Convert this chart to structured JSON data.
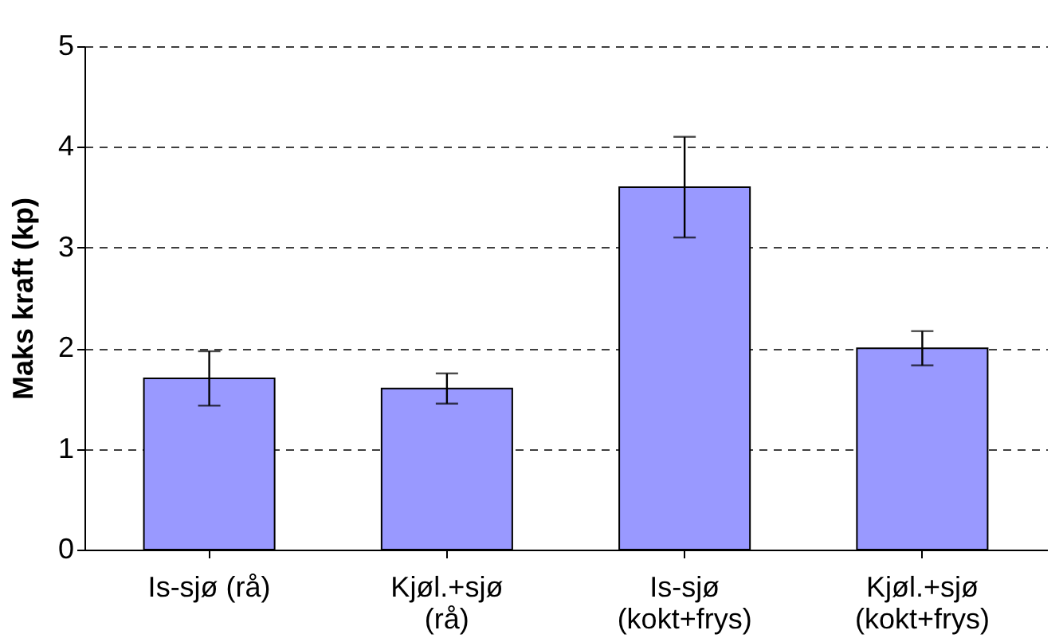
{
  "chart_data": {
    "type": "bar",
    "ylabel": "Maks kraft (kp)",
    "categories": [
      "Is-sjø (rå)",
      "Kjøl.+sjø (rå)",
      "Is-sjø (kokt+frys)",
      "Kjøl.+sjø (kokt+frys)"
    ],
    "values": [
      1.7,
      1.6,
      3.6,
      2.0
    ],
    "errors": [
      0.27,
      0.15,
      0.5,
      0.17
    ],
    "color": "#9999ff",
    "ylim": [
      0,
      5
    ],
    "yticks": [
      0,
      1,
      2,
      3,
      4,
      5
    ],
    "grid": "y"
  }
}
